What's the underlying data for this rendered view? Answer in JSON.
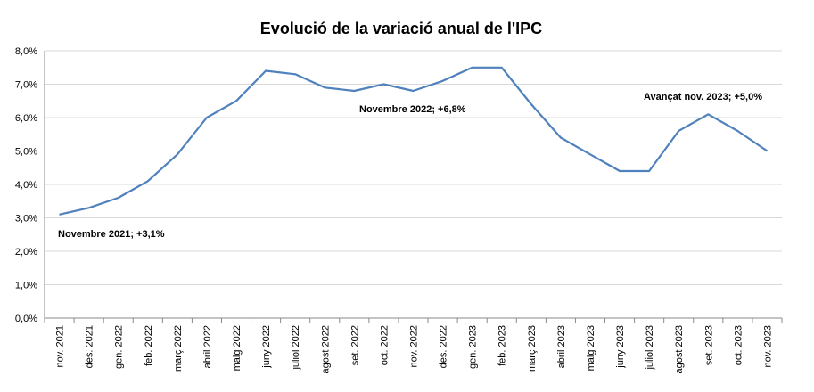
{
  "chart_data": {
    "type": "line",
    "title": "Evolució de la variació anual de l'IPC",
    "xlabel": "",
    "ylabel": "",
    "ylim": [
      0,
      8
    ],
    "yticks": [
      "0,0%",
      "1,0%",
      "2,0%",
      "3,0%",
      "4,0%",
      "5,0%",
      "6,0%",
      "7,0%",
      "8,0%"
    ],
    "grid": true,
    "line_color": "#4f81bd",
    "categories": [
      "nov. 2021",
      "des. 2021",
      "gen. 2022",
      "feb. 2022",
      "març 2022",
      "abril 2022",
      "maig 2022",
      "juny 2022",
      "juliol 2022",
      "agost 2022",
      "set. 2022",
      "oct. 2022",
      "nov. 2022",
      "des. 2022",
      "gen. 2023",
      "feb. 2023",
      "març 2023",
      "abril 2023",
      "maig 2023",
      "juny 2023",
      "juliol 2023",
      "agost 2023",
      "set. 2023",
      "oct. 2023",
      "nov. 2023"
    ],
    "series": [
      {
        "values": [
          3.1,
          3.3,
          3.6,
          4.1,
          4.9,
          6.0,
          6.5,
          7.4,
          7.3,
          6.9,
          6.8,
          7.0,
          6.8,
          7.1,
          7.5,
          7.5,
          6.4,
          5.4,
          4.9,
          4.4,
          4.4,
          5.6,
          6.1,
          5.6,
          5.0
        ]
      }
    ],
    "annotations": [
      {
        "text": "Novembre 2021; +3,1%",
        "category": "nov. 2021"
      },
      {
        "text": "Novembre 2022;  +6,8%",
        "category": "nov. 2022"
      },
      {
        "text": "Avançat nov. 2023; +5,0%",
        "category": "nov. 2023"
      }
    ]
  }
}
